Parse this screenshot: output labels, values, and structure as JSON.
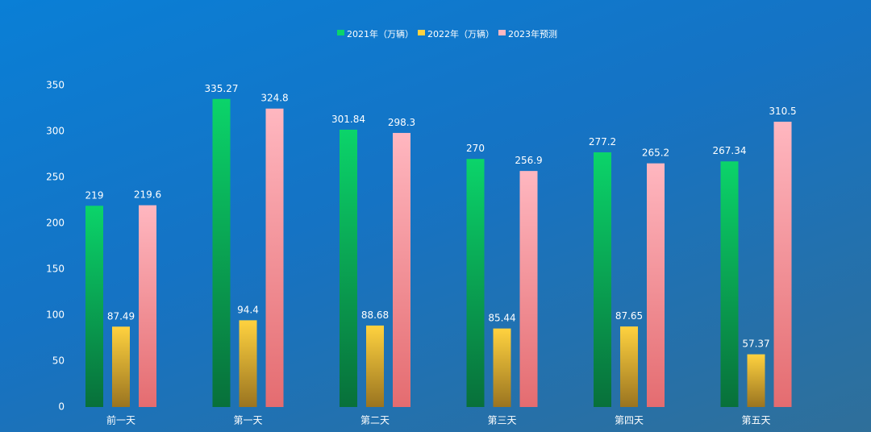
{
  "chart_data": {
    "type": "bar",
    "categories": [
      "前一天",
      "第一天",
      "第二天",
      "第三天",
      "第四天",
      "第五天"
    ],
    "series": [
      {
        "name": "2021年（万辆）",
        "values": [
          219,
          335.27,
          301.84,
          270,
          277.2,
          267.34
        ],
        "color_top": "#0bd46a",
        "color_bottom": "#08703a"
      },
      {
        "name": "2022年（万辆）",
        "values": [
          87.49,
          94.4,
          88.68,
          85.44,
          87.65,
          57.37
        ],
        "color_top": "#ffd23f",
        "color_bottom": "#9a7420"
      },
      {
        "name": "2023年预测",
        "values": [
          219.6,
          324.8,
          298.3,
          256.9,
          265.2,
          310.5
        ],
        "color_top": "#ffb7c0",
        "color_bottom": "#e46c70"
      }
    ],
    "value_labels": [
      [
        "219",
        "335.27",
        "301.84",
        "270",
        "277.2",
        "267.34"
      ],
      [
        "87.49",
        "94.4",
        "88.68",
        "85.44",
        "87.65",
        "57.37"
      ],
      [
        "219.6",
        "324.8",
        "298.3",
        "256.9",
        "265.2",
        "310.5"
      ]
    ],
    "yticks": [
      "0",
      "50",
      "100",
      "150",
      "200",
      "250",
      "300",
      "350"
    ],
    "ylim": [
      0,
      350
    ],
    "grid": false,
    "legend": "top-center",
    "title": "",
    "xlabel": "",
    "ylabel": ""
  }
}
